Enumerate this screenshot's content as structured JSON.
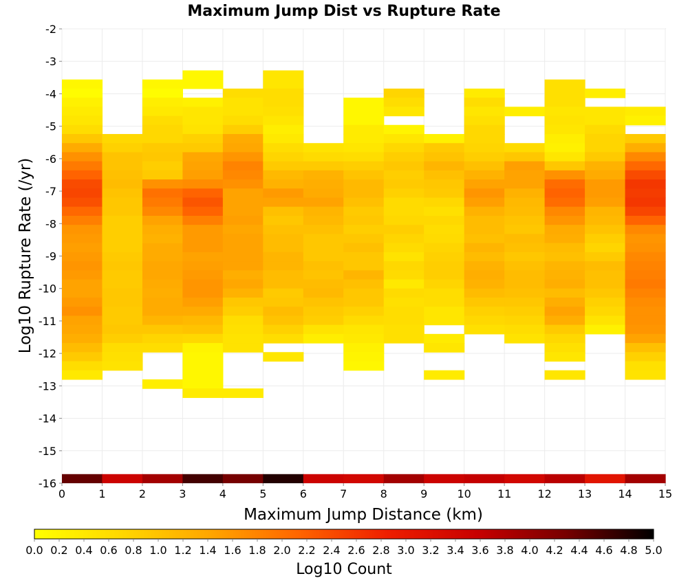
{
  "chart_data": {
    "type": "heatmap",
    "title": "Maximum Jump Dist vs Rupture Rate",
    "xlabel": "Maximum Jump Distance (km)",
    "ylabel": "Log10 Rupture Rate (/yr)",
    "xlim": [
      0,
      15
    ],
    "ylim": [
      -16,
      -2
    ],
    "x_ticks": [
      "0",
      "1",
      "2",
      "3",
      "4",
      "5",
      "6",
      "7",
      "8",
      "9",
      "10",
      "11",
      "12",
      "13",
      "14",
      "15"
    ],
    "y_ticks": [
      "-2",
      "-3",
      "-4",
      "-5",
      "-6",
      "-7",
      "-8",
      "-9",
      "-10",
      "-11",
      "-12",
      "-13",
      "-14",
      "-15",
      "-16"
    ],
    "x_bin_width": 1,
    "y_bin_height": 0.28,
    "grid": true,
    "colorbar": {
      "title": "Log10 Count",
      "range": [
        0.0,
        5.0
      ],
      "ticks": [
        "0.0",
        "0.2",
        "0.4",
        "0.6",
        "0.8",
        "1.0",
        "1.2",
        "1.4",
        "1.6",
        "1.8",
        "2.0",
        "2.2",
        "2.4",
        "2.6",
        "2.8",
        "3.0",
        "3.2",
        "3.4",
        "3.6",
        "3.8",
        "4.0",
        "4.2",
        "4.4",
        "4.6",
        "4.8",
        "5.0"
      ],
      "stops": [
        "#ffff00",
        "#ffd700",
        "#ffa500",
        "#ff6400",
        "#ee1e00",
        "#c80000",
        "#780000",
        "#000000"
      ],
      "placement": "bottom"
    },
    "columns": [
      {
        "x": 0,
        "y_start": -3.56,
        "values": [
          0.15,
          0.05,
          0.25,
          0.35,
          0.45,
          0.6,
          0.95,
          1.35,
          1.65,
          1.9,
          2.15,
          2.4,
          2.45,
          2.35,
          2.1,
          1.85,
          1.6,
          1.55,
          1.5,
          1.55,
          1.6,
          1.55,
          1.45,
          1.45,
          1.55,
          1.65,
          1.45,
          1.4,
          1.3,
          1.1,
          0.9,
          0.6,
          0.4
        ]
      },
      {
        "x": 1,
        "y_start": -5.24,
        "values": [
          0.7,
          0.8,
          1.0,
          1.0,
          1.05,
          1.1,
          1.0,
          0.95,
          0.95,
          0.85,
          0.85,
          0.85,
          0.85,
          0.9,
          0.95,
          0.9,
          0.9,
          0.95,
          0.95,
          0.9,
          0.9,
          0.95,
          0.85,
          0.6,
          0.55,
          0.5
        ]
      },
      {
        "x": 2,
        "y_start": -3.56,
        "values": [
          0.15,
          0.05,
          0.3,
          0.4,
          0.6,
          0.7,
          0.7,
          0.9,
          0.95,
          0.85,
          0.9,
          1.65,
          2.0,
          1.9,
          1.75,
          1.45,
          1.3,
          1.25,
          1.35,
          1.35,
          1.4,
          1.4,
          1.35,
          1.3,
          1.35,
          1.35,
          1.2,
          0.95,
          0.75,
          0.6,
          -1,
          -1,
          -1,
          0.3
        ]
      },
      {
        "x": 3,
        "y_start": -3.28,
        "values": [
          0.15,
          0.15,
          -1,
          0.25,
          0.45,
          0.45,
          0.5,
          0.8,
          0.9,
          1.4,
          1.45,
          1.5,
          1.7,
          2.15,
          2.3,
          2.15,
          1.85,
          1.55,
          1.55,
          1.55,
          1.45,
          1.5,
          1.55,
          1.6,
          1.6,
          1.5,
          1.35,
          1.15,
          1.0,
          0.7,
          0.2,
          0.15,
          0.15,
          0.15,
          0.15,
          0.35
        ]
      },
      {
        "x": 4,
        "y_start": -3.84,
        "values": [
          0.6,
          0.5,
          0.5,
          0.6,
          0.85,
          1.35,
          1.4,
          1.6,
          1.8,
          1.75,
          1.65,
          1.45,
          1.45,
          1.45,
          1.5,
          1.4,
          1.45,
          1.45,
          1.45,
          1.45,
          1.3,
          1.4,
          1.25,
          0.95,
          0.85,
          0.6,
          0.55,
          0.5,
          0.5,
          -1,
          -1,
          -1,
          -1,
          0.35
        ]
      },
      {
        "x": 5,
        "y_start": -3.28,
        "values": [
          0.45,
          0.45,
          0.6,
          0.6,
          0.55,
          0.45,
          0.3,
          0.4,
          0.6,
          0.75,
          0.9,
          1.15,
          1.25,
          1.55,
          1.45,
          1.05,
          0.95,
          1.05,
          1.1,
          1.1,
          1.2,
          1.2,
          1.1,
          1.1,
          0.9,
          0.95,
          1.1,
          1.0,
          0.8,
          0.6,
          -1,
          0.45
        ]
      },
      {
        "x": 6,
        "y_start": -5.52,
        "values": [
          0.5,
          0.65,
          0.9,
          1.25,
          1.3,
          1.35,
          1.45,
          1.2,
          1.15,
          1.05,
          0.95,
          0.95,
          0.95,
          1.05,
          1.0,
          1.1,
          1.15,
          1.0,
          0.9,
          0.85,
          0.5,
          0.3
        ]
      },
      {
        "x": 7,
        "y_start": -4.12,
        "values": [
          0.15,
          0.15,
          0.15,
          0.35,
          0.35,
          0.45,
          0.6,
          0.85,
          1.0,
          1.15,
          1.15,
          1.05,
          0.9,
          0.95,
          0.85,
          0.95,
          1.05,
          0.95,
          0.95,
          1.2,
          1.05,
          0.95,
          0.95,
          0.8,
          0.65,
          0.45,
          0.4,
          0.25,
          0.2,
          0.15
        ]
      },
      {
        "x": 8,
        "y_start": -3.84,
        "values": [
          0.75,
          0.6,
          0.45,
          -1,
          0.2,
          0.45,
          0.7,
          0.85,
          0.95,
          0.85,
          0.9,
          0.8,
          0.65,
          0.65,
          0.7,
          0.85,
          0.75,
          0.65,
          0.5,
          0.7,
          0.65,
          0.4,
          0.65,
          0.55,
          0.6,
          0.6,
          0.55,
          0.55
        ]
      },
      {
        "x": 9,
        "y_start": -5.24,
        "values": [
          0.25,
          0.9,
          1.0,
          1.2,
          1.05,
          0.95,
          0.9,
          0.7,
          0.55,
          0.7,
          0.6,
          0.65,
          0.75,
          0.8,
          0.85,
          0.85,
          0.75,
          0.6,
          0.6,
          0.45,
          0.45,
          -1,
          0.35,
          0.45,
          -1,
          -1,
          0.35
        ]
      },
      {
        "x": 10,
        "y_start": -3.84,
        "values": [
          0.35,
          0.6,
          0.45,
          0.55,
          0.7,
          0.7,
          0.75,
          0.85,
          1.05,
          1.25,
          1.45,
          1.6,
          1.5,
          1.25,
          1.1,
          1.1,
          1.05,
          1.2,
          1.1,
          1.25,
          1.3,
          1.25,
          1.1,
          0.95,
          0.8,
          0.7,
          0.55
        ]
      },
      {
        "x": 11,
        "y_start": -4.4,
        "values": [
          0.3,
          -1,
          -1,
          -1,
          0.65,
          0.95,
          1.5,
          1.45,
          1.45,
          1.25,
          1.15,
          1.1,
          1.0,
          0.95,
          1.1,
          1.05,
          0.95,
          1.05,
          1.1,
          1.1,
          1.05,
          0.95,
          0.85,
          0.75,
          0.6,
          0.5
        ]
      },
      {
        "x": 12,
        "y_start": -3.56,
        "values": [
          0.55,
          0.55,
          0.55,
          0.45,
          0.5,
          0.45,
          0.3,
          0.25,
          0.45,
          0.95,
          1.65,
          2.05,
          2.15,
          2.05,
          1.75,
          1.6,
          1.35,
          1.3,
          1.1,
          1.05,
          1.2,
          1.25,
          1.3,
          1.1,
          1.3,
          1.45,
          1.3,
          0.9,
          0.7,
          0.55,
          0.45,
          -1,
          0.45
        ]
      },
      {
        "x": 13,
        "y_start": -3.84,
        "values": [
          0.3,
          -1,
          0.45,
          0.45,
          0.65,
          0.75,
          0.75,
          0.9,
          1.25,
          1.35,
          1.55,
          1.55,
          1.5,
          1.2,
          1.15,
          1.0,
          0.85,
          0.75,
          0.9,
          1.1,
          1.05,
          1.05,
          0.95,
          0.8,
          0.7,
          0.5,
          0.25
        ]
      },
      {
        "x": 14,
        "y_start": -4.4,
        "values": [
          0.35,
          0.25,
          -1,
          0.9,
          1.3,
          1.75,
          2.1,
          2.4,
          2.6,
          2.55,
          2.6,
          2.45,
          2.15,
          1.75,
          1.6,
          1.65,
          1.75,
          1.8,
          1.85,
          1.9,
          1.8,
          1.7,
          1.65,
          1.65,
          1.6,
          1.45,
          1.05,
          0.8,
          0.55,
          0.5
        ]
      }
    ],
    "bottom_row": {
      "y": -16,
      "values": [
        4.4,
        3.5,
        3.9,
        4.6,
        4.3,
        4.8,
        3.5,
        3.4,
        3.9,
        3.5,
        3.6,
        3.4,
        3.7,
        3.1,
        3.9
      ]
    }
  }
}
